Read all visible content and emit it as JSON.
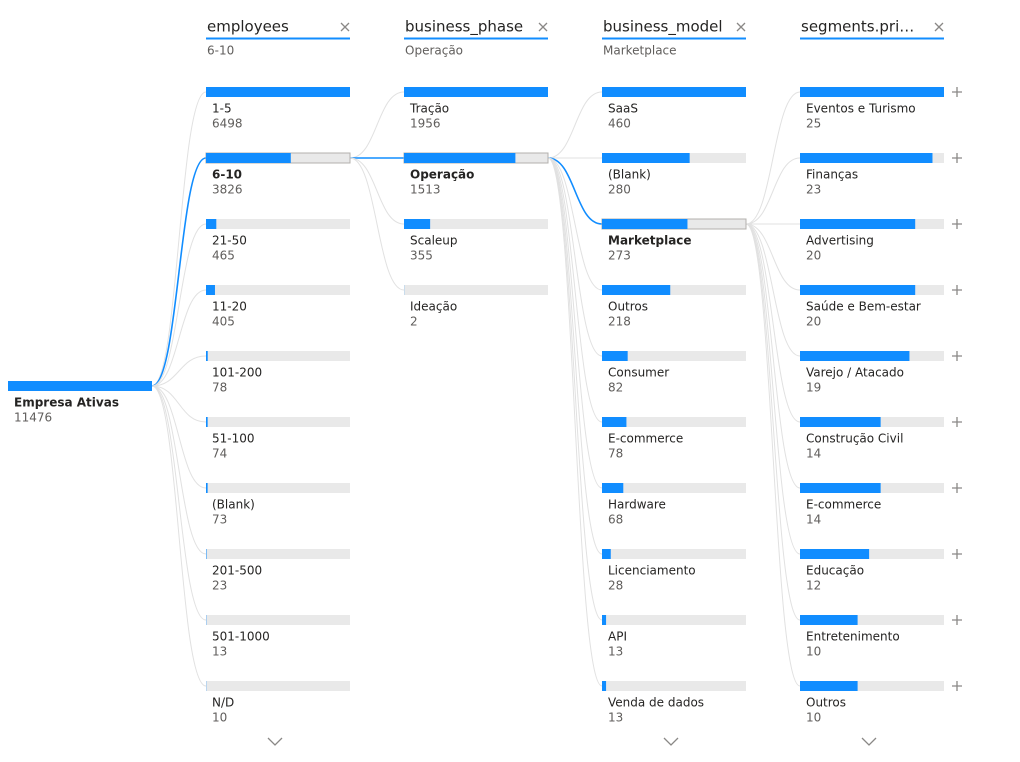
{
  "chart_data": {
    "type": "decomposition-tree",
    "color": "#118dff",
    "root": {
      "label": "Empresa Ativas",
      "value": 11476
    },
    "levels": [
      {
        "field": "employees",
        "selected": "6-10",
        "nodes": [
          {
            "label": "1-5",
            "value": 6498
          },
          {
            "label": "6-10",
            "value": 3826
          },
          {
            "label": "21-50",
            "value": 465
          },
          {
            "label": "11-20",
            "value": 405
          },
          {
            "label": "101-200",
            "value": 78
          },
          {
            "label": "51-100",
            "value": 74
          },
          {
            "label": "(Blank)",
            "value": 73
          },
          {
            "label": "201-500",
            "value": 23
          },
          {
            "label": "501-1000",
            "value": 13
          },
          {
            "label": "N/D",
            "value": 10
          }
        ]
      },
      {
        "field": "business_phase",
        "selected": "Operação",
        "nodes": [
          {
            "label": "Tração",
            "value": 1956
          },
          {
            "label": "Operação",
            "value": 1513
          },
          {
            "label": "Scaleup",
            "value": 355
          },
          {
            "label": "Ideação",
            "value": 2
          }
        ]
      },
      {
        "field": "business_model",
        "selected": "Marketplace",
        "nodes": [
          {
            "label": "SaaS",
            "value": 460
          },
          {
            "label": "(Blank)",
            "value": 280
          },
          {
            "label": "Marketplace",
            "value": 273
          },
          {
            "label": "Outros",
            "value": 218
          },
          {
            "label": "Consumer",
            "value": 82
          },
          {
            "label": "E-commerce",
            "value": 78
          },
          {
            "label": "Hardware",
            "value": 68
          },
          {
            "label": "Licenciamento",
            "value": 28
          },
          {
            "label": "API",
            "value": 13
          },
          {
            "label": "Venda de dados",
            "value": 13
          }
        ]
      },
      {
        "field": "segments.pri…",
        "nodes": [
          {
            "label": "Eventos e Turismo",
            "value": 25
          },
          {
            "label": "Finanças",
            "value": 23
          },
          {
            "label": "Advertising",
            "value": 20
          },
          {
            "label": "Saúde e Bem-estar",
            "value": 20
          },
          {
            "label": "Varejo / Atacado",
            "value": 19
          },
          {
            "label": "Construção Civil",
            "value": 14
          },
          {
            "label": "E-commerce",
            "value": 14
          },
          {
            "label": "Educação",
            "value": 12
          },
          {
            "label": "Entretenimento",
            "value": 10
          },
          {
            "label": "Outros",
            "value": 10
          }
        ]
      }
    ]
  }
}
